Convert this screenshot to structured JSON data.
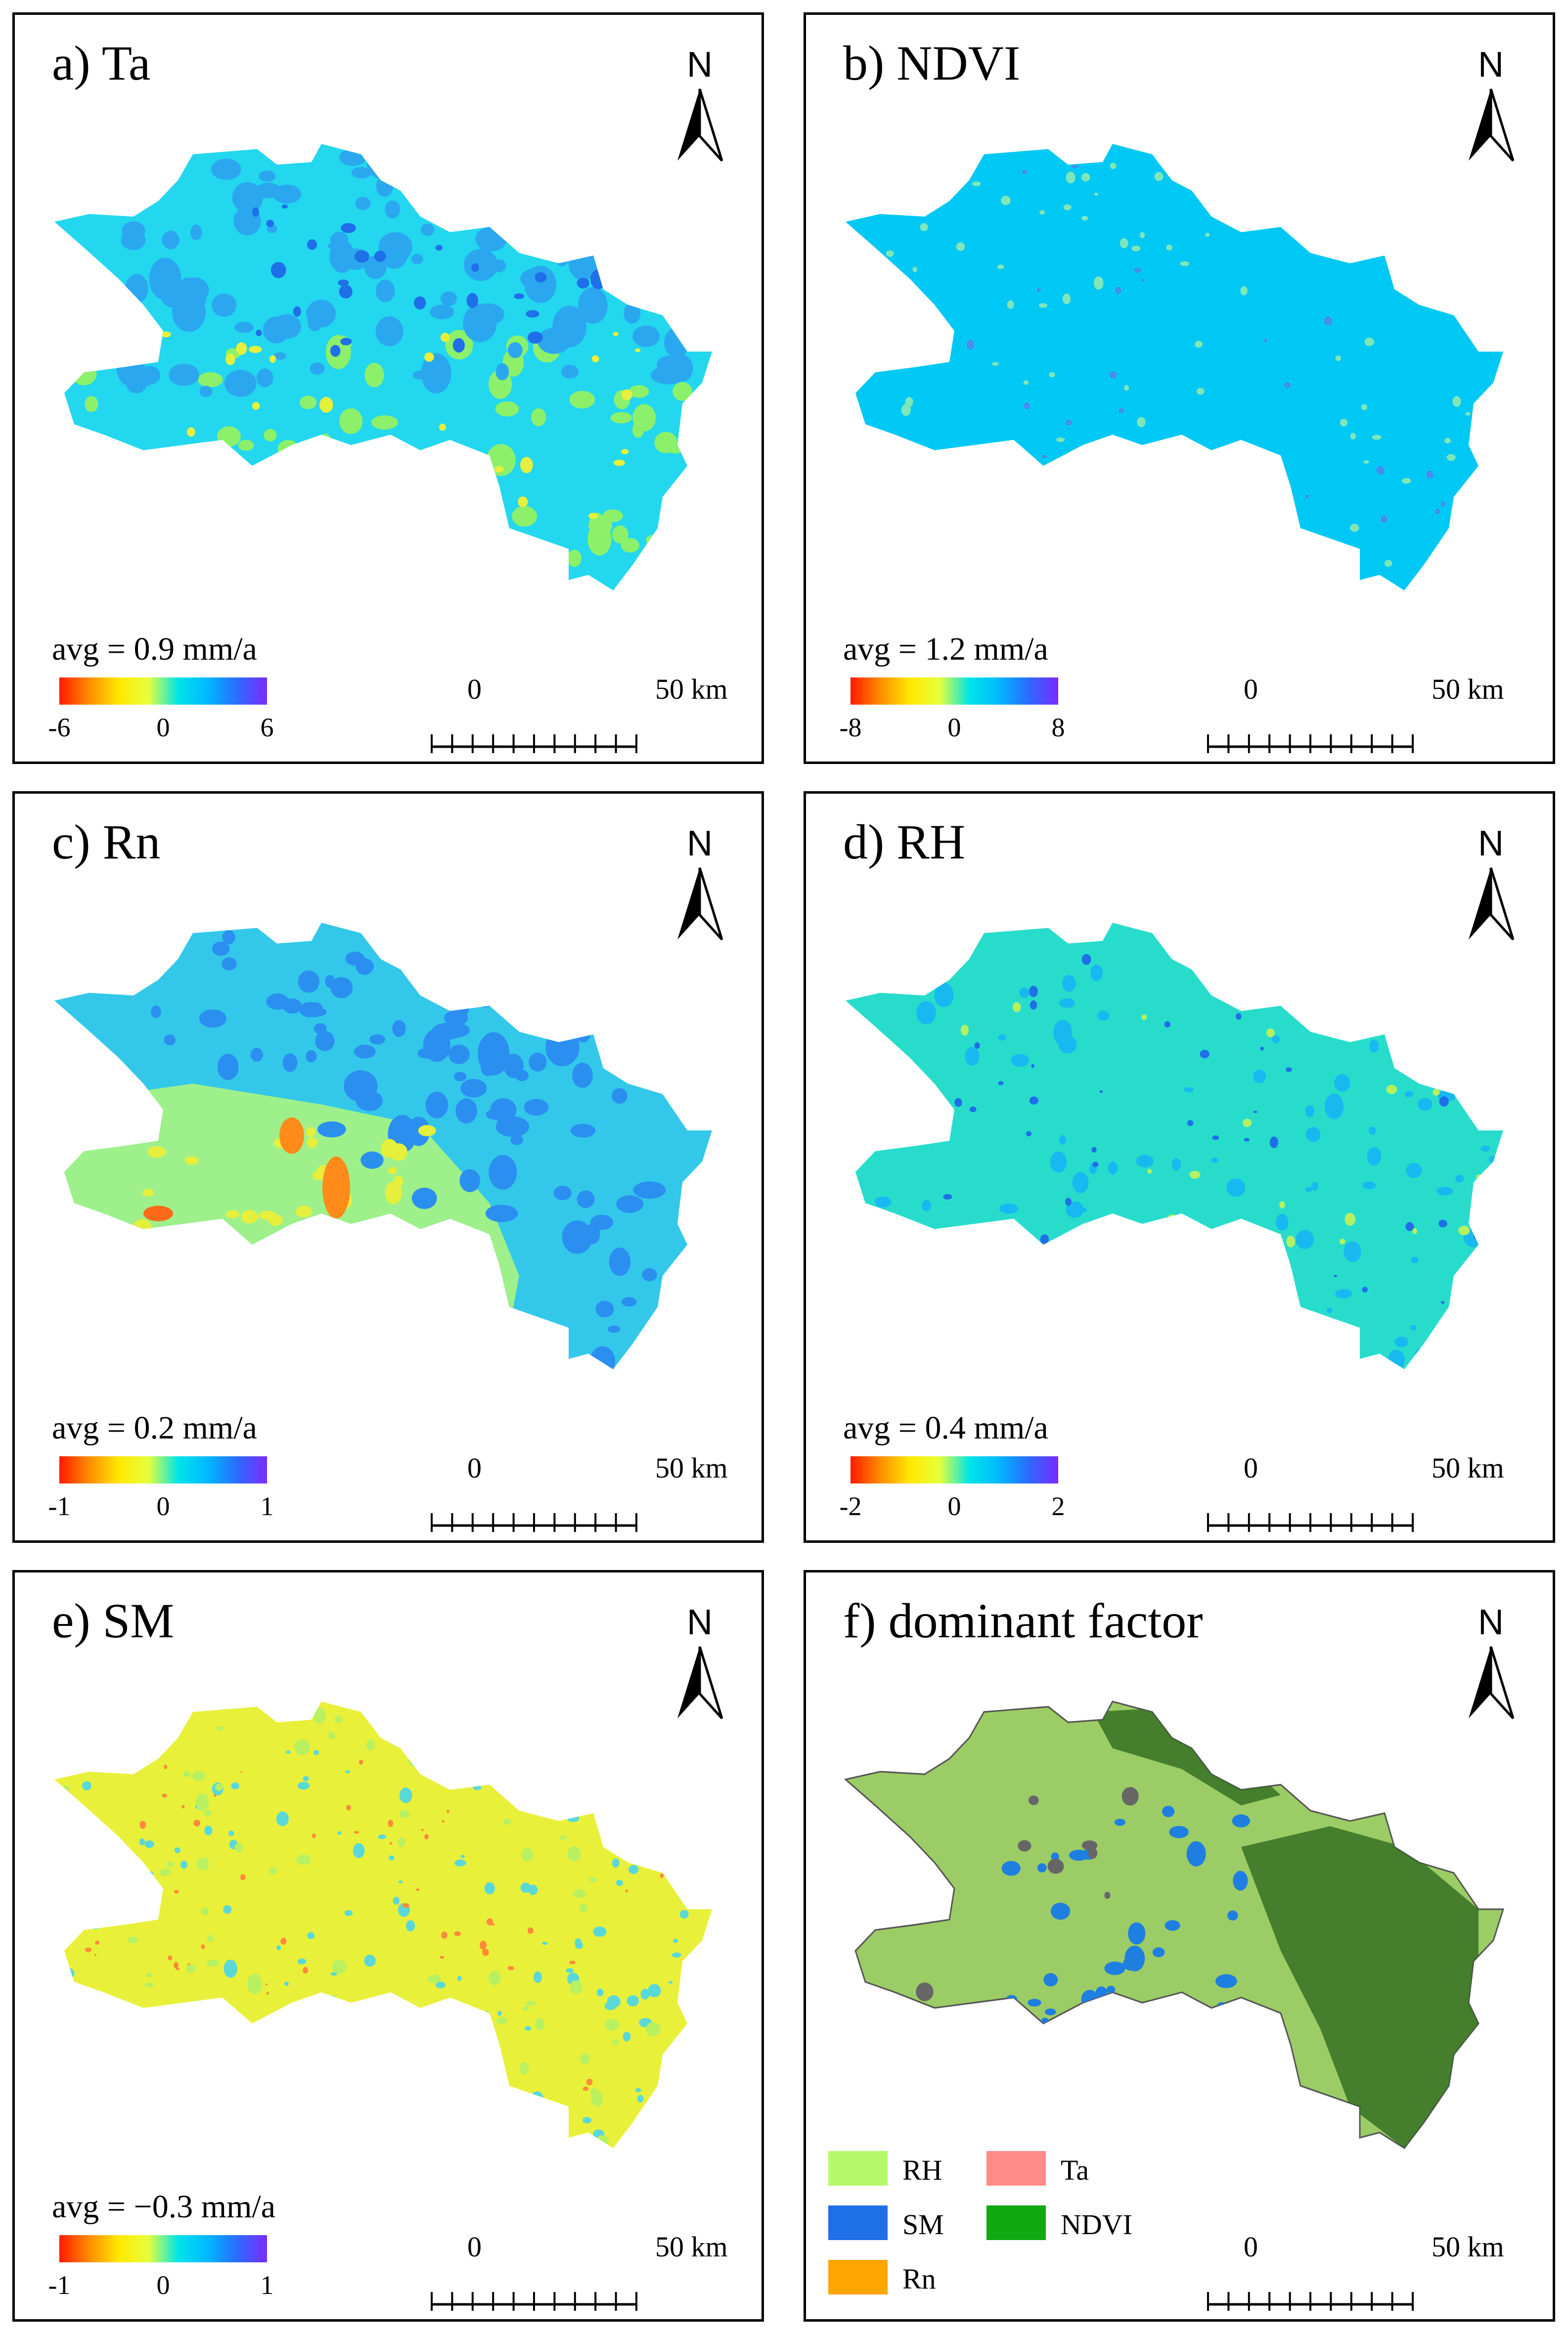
{
  "north_label": "N",
  "scalebar": {
    "start": "0",
    "end": "50 km"
  },
  "panels": [
    {
      "id": "a",
      "title": "a) Ta",
      "avg": "avg = 0.9 mm/a",
      "colorbar": {
        "min": "-6",
        "mid": "0",
        "max": "6"
      },
      "base_color": "#23d7ee"
    },
    {
      "id": "b",
      "title": "b) NDVI",
      "avg": "avg = 1.2 mm/a",
      "colorbar": {
        "min": "-8",
        "mid": "0",
        "max": "8"
      },
      "base_color": "#00c8f4"
    },
    {
      "id": "c",
      "title": "c) Rn",
      "avg": "avg = 0.2 mm/a",
      "colorbar": {
        "min": "-1",
        "mid": "0",
        "max": "1"
      },
      "base_color": "#33c8ea"
    },
    {
      "id": "d",
      "title": "d) RH",
      "avg": "avg = 0.4 mm/a",
      "colorbar": {
        "min": "-2",
        "mid": "0",
        "max": "2"
      },
      "base_color": "#28dccc"
    },
    {
      "id": "e",
      "title": "e) SM",
      "avg": "avg = −0.3 mm/a",
      "colorbar": {
        "min": "-1",
        "mid": "0",
        "max": "1"
      },
      "base_color": "#e8f03a"
    },
    {
      "id": "f",
      "title": "f) dominant factor",
      "base_color": "#9ccc65"
    }
  ],
  "dominant_legend": [
    {
      "label": "RH",
      "color": "#b5f96a"
    },
    {
      "label": "Ta",
      "color": "#ff8a8a"
    },
    {
      "label": "SM",
      "color": "#1f6fe8"
    },
    {
      "label": "NDVI",
      "color": "#12a812"
    },
    {
      "label": "Rn",
      "color": "#ffa500"
    }
  ],
  "colors": {
    "ramp": [
      "#ff1a00",
      "#ff8c00",
      "#ffe800",
      "#e7ff3a",
      "#00e5e8",
      "#00b8ff",
      "#2b6bff",
      "#7a2bff"
    ],
    "dark_green": "#2f6b1f"
  }
}
